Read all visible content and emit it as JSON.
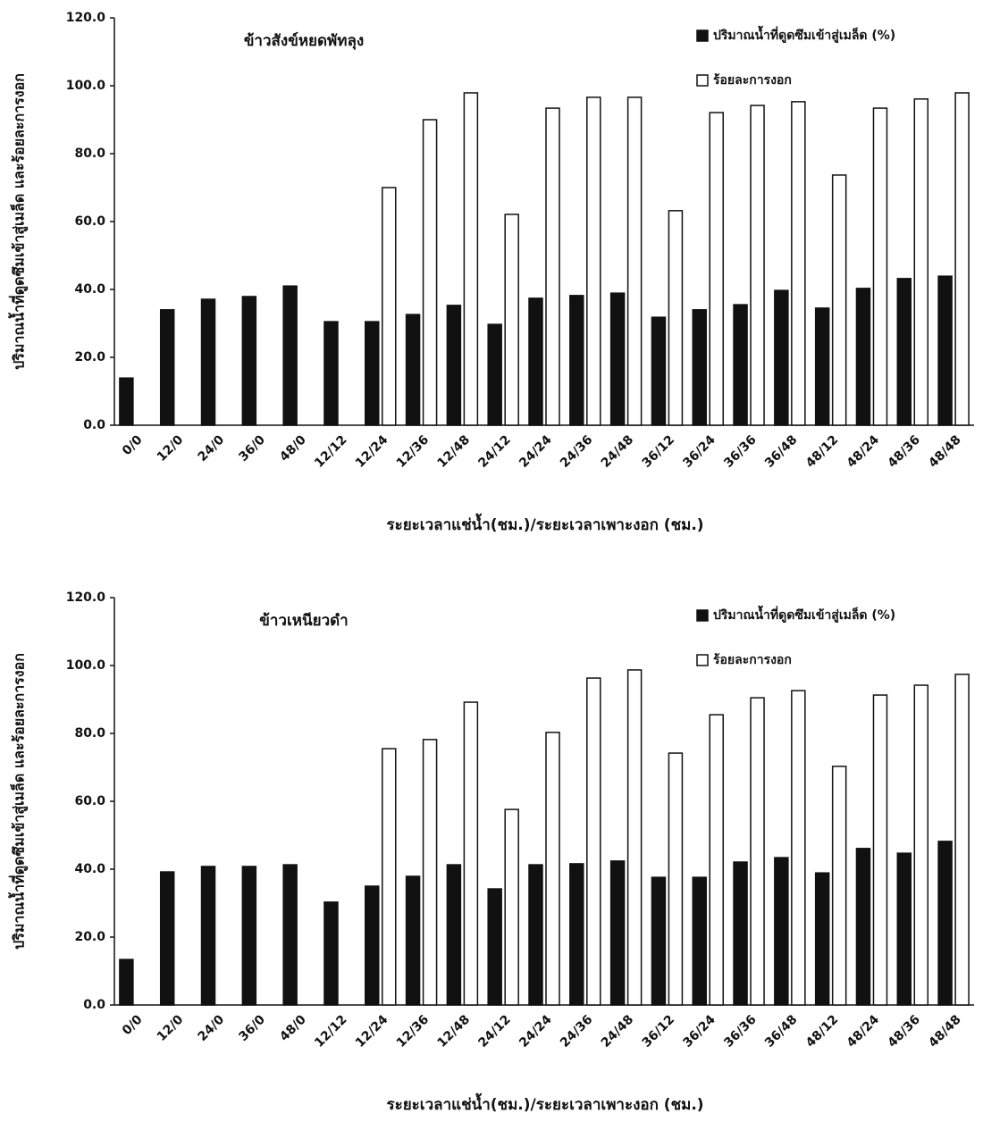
{
  "chart_data": [
    {
      "type": "bar",
      "title": "ข้าวสังข์หยดพัทลุง",
      "x_label": "ระยะเวลาแช่น้ำ(ชม.)/ระยะเวลาเพาะงอก (ชม.)",
      "y_label": "ปริมาณน้ำที่ดูดซึมเข้าสู่เมล็ด และร้อยละการงอก",
      "categories": [
        "0/0",
        "12/0",
        "24/0",
        "36/0",
        "48/0",
        "12/12",
        "12/24",
        "12/36",
        "12/48",
        "24/12",
        "24/24",
        "24/36",
        "24/48",
        "36/12",
        "36/24",
        "36/36",
        "36/48",
        "48/12",
        "48/24",
        "48/36",
        "48/48"
      ],
      "series": [
        {
          "name": "ปริมาณน้ำที่ดูดซึมเข้าสู่เมล็ด (%)",
          "color": "#111111",
          "values": [
            13.9,
            34.0,
            37.1,
            37.9,
            41.0,
            30.5,
            30.5,
            32.6,
            35.3,
            29.7,
            37.4,
            38.2,
            38.9,
            31.8,
            34.0,
            35.5,
            39.7,
            34.5,
            40.3,
            43.2,
            43.9
          ]
        },
        {
          "name": "ร้อยละการงอก",
          "color": "#ffffff",
          "values": [
            null,
            null,
            null,
            null,
            null,
            null,
            70.0,
            90.0,
            97.9,
            62.1,
            93.4,
            96.6,
            96.6,
            63.2,
            92.1,
            94.2,
            95.3,
            73.7,
            93.4,
            96.1,
            97.9
          ]
        }
      ],
      "ylim": [
        0,
        120
      ],
      "yticks": [
        {
          "value": 0,
          "label": "0.0"
        },
        {
          "value": 20,
          "label": "20.0"
        },
        {
          "value": 40,
          "label": "40.0"
        },
        {
          "value": 60,
          "label": "60.0"
        },
        {
          "value": 80,
          "label": "80.0"
        },
        {
          "value": 100,
          "label": "100.0"
        },
        {
          "value": 120,
          "label": "120.0"
        }
      ],
      "legend": "top-right"
    },
    {
      "type": "bar",
      "title": "ข้าวเหนียวดำ",
      "x_label": "ระยะเวลาแช่น้ำ(ชม.)/ระยะเวลาเพาะงอก (ชม.)",
      "y_label": "ปริมาณน้ำที่ดูดซึมเข้าสู่เมล็ด และร้อยละการงอก",
      "categories": [
        "0/0",
        "12/0",
        "24/0",
        "36/0",
        "48/0",
        "12/12",
        "12/24",
        "12/36",
        "12/48",
        "24/12",
        "24/24",
        "24/36",
        "24/48",
        "36/12",
        "36/24",
        "36/36",
        "36/48",
        "48/12",
        "48/24",
        "48/36",
        "48/48"
      ],
      "series": [
        {
          "name": "ปริมาณน้ำที่ดูดซึมเข้าสู่เมล็ด (%)",
          "color": "#111111",
          "values": [
            13.4,
            39.2,
            40.8,
            40.8,
            41.3,
            30.3,
            35.0,
            37.9,
            41.3,
            34.2,
            41.3,
            41.6,
            42.4,
            37.6,
            37.6,
            42.1,
            43.4,
            38.9,
            46.1,
            44.7,
            48.2
          ]
        },
        {
          "name": "ร้อยละการงอก",
          "color": "#ffffff",
          "values": [
            null,
            null,
            null,
            null,
            null,
            null,
            75.5,
            78.2,
            89.2,
            57.6,
            80.3,
            96.3,
            98.7,
            74.2,
            85.5,
            90.5,
            92.6,
            70.3,
            91.3,
            94.2,
            97.4
          ]
        }
      ],
      "ylim": [
        0,
        120
      ],
      "yticks": [
        {
          "value": 0,
          "label": "0.0"
        },
        {
          "value": 20,
          "label": "20.0"
        },
        {
          "value": 40,
          "label": "40.0"
        },
        {
          "value": 60,
          "label": "60.0"
        },
        {
          "value": 80,
          "label": "80.0"
        },
        {
          "value": 100,
          "label": "100.0"
        },
        {
          "value": 120,
          "label": "120.0"
        }
      ],
      "legend": "top-right"
    }
  ]
}
